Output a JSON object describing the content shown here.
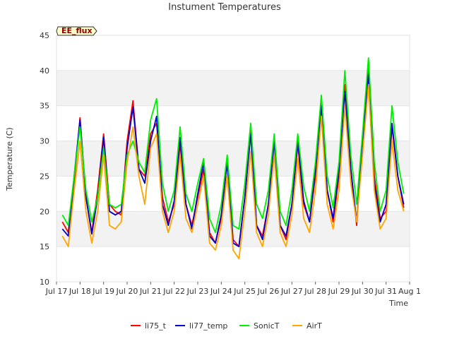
{
  "chart_data": {
    "type": "line",
    "title": "Instument Temperatures",
    "xlabel": "Time",
    "ylabel": "Temperature (C)",
    "badge": "EE_flux",
    "xlim": [
      "2024-07-17",
      "2024-08-01"
    ],
    "ylim": [
      10,
      45
    ],
    "yticks": [
      10,
      15,
      20,
      25,
      30,
      35,
      40,
      45
    ],
    "xticks": [
      {
        "date": "2024-07-17",
        "label": "Jul 17"
      },
      {
        "date": "2024-07-18",
        "label": "Jul 18"
      },
      {
        "date": "2024-07-19",
        "label": "Jul 19"
      },
      {
        "date": "2024-07-20",
        "label": "Jul 20"
      },
      {
        "date": "2024-07-21",
        "label": "Jul 21"
      },
      {
        "date": "2024-07-22",
        "label": "Jul 22"
      },
      {
        "date": "2024-07-23",
        "label": "Jul 23"
      },
      {
        "date": "2024-07-24",
        "label": "Jul 24"
      },
      {
        "date": "2024-07-25",
        "label": "Jul 25"
      },
      {
        "date": "2024-07-26",
        "label": "Jul 26"
      },
      {
        "date": "2024-07-27",
        "label": "Jul 27"
      },
      {
        "date": "2024-07-28",
        "label": "Jul 28"
      },
      {
        "date": "2024-07-29",
        "label": "Jul 29"
      },
      {
        "date": "2024-07-30",
        "label": "Jul 30"
      },
      {
        "date": "2024-07-31",
        "label": "Jul 31"
      },
      {
        "date": "2024-08-01",
        "label": "Aug 1"
      }
    ],
    "grid": true,
    "legend_position": "bottom",
    "x": [
      "2024-07-17T06:00",
      "2024-07-17T12:00",
      "2024-07-17T18:00",
      "2024-07-18T00:00",
      "2024-07-18T06:00",
      "2024-07-18T12:00",
      "2024-07-18T18:00",
      "2024-07-19T00:00",
      "2024-07-19T06:00",
      "2024-07-19T12:00",
      "2024-07-19T18:00",
      "2024-07-20T00:00",
      "2024-07-20T06:00",
      "2024-07-20T12:00",
      "2024-07-20T18:00",
      "2024-07-21T00:00",
      "2024-07-21T06:00",
      "2024-07-21T12:00",
      "2024-07-21T18:00",
      "2024-07-22T00:00",
      "2024-07-22T06:00",
      "2024-07-22T12:00",
      "2024-07-22T18:00",
      "2024-07-23T00:00",
      "2024-07-23T06:00",
      "2024-07-23T12:00",
      "2024-07-23T18:00",
      "2024-07-24T00:00",
      "2024-07-24T06:00",
      "2024-07-24T12:00",
      "2024-07-24T18:00",
      "2024-07-25T00:00",
      "2024-07-25T06:00",
      "2024-07-25T12:00",
      "2024-07-25T18:00",
      "2024-07-26T00:00",
      "2024-07-26T06:00",
      "2024-07-26T12:00",
      "2024-07-26T18:00",
      "2024-07-27T00:00",
      "2024-07-27T06:00",
      "2024-07-27T12:00",
      "2024-07-27T18:00",
      "2024-07-28T00:00",
      "2024-07-28T06:00",
      "2024-07-28T12:00",
      "2024-07-28T18:00",
      "2024-07-29T00:00",
      "2024-07-29T06:00",
      "2024-07-29T12:00",
      "2024-07-29T18:00",
      "2024-07-30T00:00",
      "2024-07-30T06:00",
      "2024-07-30T12:00",
      "2024-07-30T18:00",
      "2024-07-31T00:00",
      "2024-07-31T06:00",
      "2024-07-31T12:00",
      "2024-07-31T18:00"
    ],
    "series": [
      {
        "name": "li75_t",
        "color": "#ff0000",
        "values": [
          18.5,
          17.0,
          24.0,
          33.3,
          22.0,
          17.0,
          23.0,
          31.0,
          21.0,
          20.0,
          19.5,
          30.0,
          35.7,
          26.0,
          25.0,
          31.0,
          32.5,
          22.0,
          18.5,
          21.0,
          29.5,
          21.0,
          18.0,
          22.0,
          26.0,
          17.0,
          15.5,
          19.0,
          27.0,
          16.0,
          15.0,
          22.0,
          31.5,
          18.0,
          16.5,
          21.0,
          30.0,
          18.0,
          16.0,
          21.0,
          29.5,
          21.0,
          18.5,
          25.0,
          36.0,
          23.0,
          18.5,
          25.0,
          38.0,
          26.0,
          18.0,
          30.0,
          41.0,
          25.0,
          19.0,
          20.0,
          32.0,
          25.0,
          20.5
        ]
      },
      {
        "name": "li77_temp",
        "color": "#0000cc",
        "values": [
          17.5,
          16.5,
          25.0,
          33.0,
          22.0,
          16.8,
          22.0,
          30.5,
          20.0,
          19.5,
          20.0,
          29.0,
          34.8,
          26.0,
          24.0,
          30.0,
          33.5,
          21.0,
          18.0,
          21.5,
          30.5,
          21.0,
          17.5,
          22.5,
          27.0,
          16.5,
          15.5,
          19.5,
          27.0,
          15.5,
          15.0,
          22.0,
          31.0,
          18.0,
          16.0,
          21.0,
          30.0,
          18.0,
          16.5,
          21.0,
          30.0,
          21.5,
          18.5,
          26.0,
          35.0,
          23.0,
          19.0,
          26.0,
          37.0,
          26.0,
          18.5,
          30.0,
          39.5,
          24.0,
          18.5,
          21.0,
          32.5,
          25.0,
          21.0
        ]
      },
      {
        "name": "SonicT",
        "color": "#00ee00",
        "values": [
          19.5,
          18.0,
          25.0,
          32.0,
          23.0,
          18.5,
          22.0,
          29.0,
          21.0,
          20.5,
          21.0,
          28.0,
          30.0,
          27.0,
          25.5,
          33.0,
          36.0,
          24.0,
          20.0,
          23.0,
          32.0,
          22.5,
          20.0,
          24.0,
          27.5,
          19.0,
          17.0,
          21.0,
          28.0,
          18.0,
          17.5,
          24.0,
          32.5,
          21.0,
          19.0,
          23.0,
          31.0,
          20.0,
          18.0,
          23.0,
          31.0,
          23.5,
          20.0,
          27.0,
          36.5,
          25.0,
          20.5,
          27.0,
          40.0,
          28.0,
          21.0,
          31.0,
          41.8,
          27.0,
          20.0,
          23.0,
          35.0,
          27.0,
          22.5
        ]
      },
      {
        "name": "AirT",
        "color": "#ffa500",
        "values": [
          16.5,
          15.0,
          23.0,
          30.0,
          20.0,
          15.5,
          20.0,
          28.0,
          18.0,
          17.5,
          18.5,
          27.0,
          32.0,
          25.0,
          21.0,
          29.0,
          31.0,
          20.0,
          17.0,
          20.0,
          28.0,
          19.0,
          17.0,
          21.0,
          25.0,
          15.5,
          14.5,
          18.0,
          25.0,
          14.5,
          13.3,
          20.0,
          28.5,
          17.0,
          15.0,
          19.5,
          28.0,
          17.0,
          15.0,
          19.5,
          27.5,
          19.0,
          17.0,
          23.0,
          33.5,
          21.0,
          17.5,
          23.0,
          35.0,
          24.0,
          18.5,
          28.0,
          38.0,
          23.0,
          17.5,
          19.0,
          30.0,
          23.0,
          20.0
        ]
      }
    ]
  }
}
